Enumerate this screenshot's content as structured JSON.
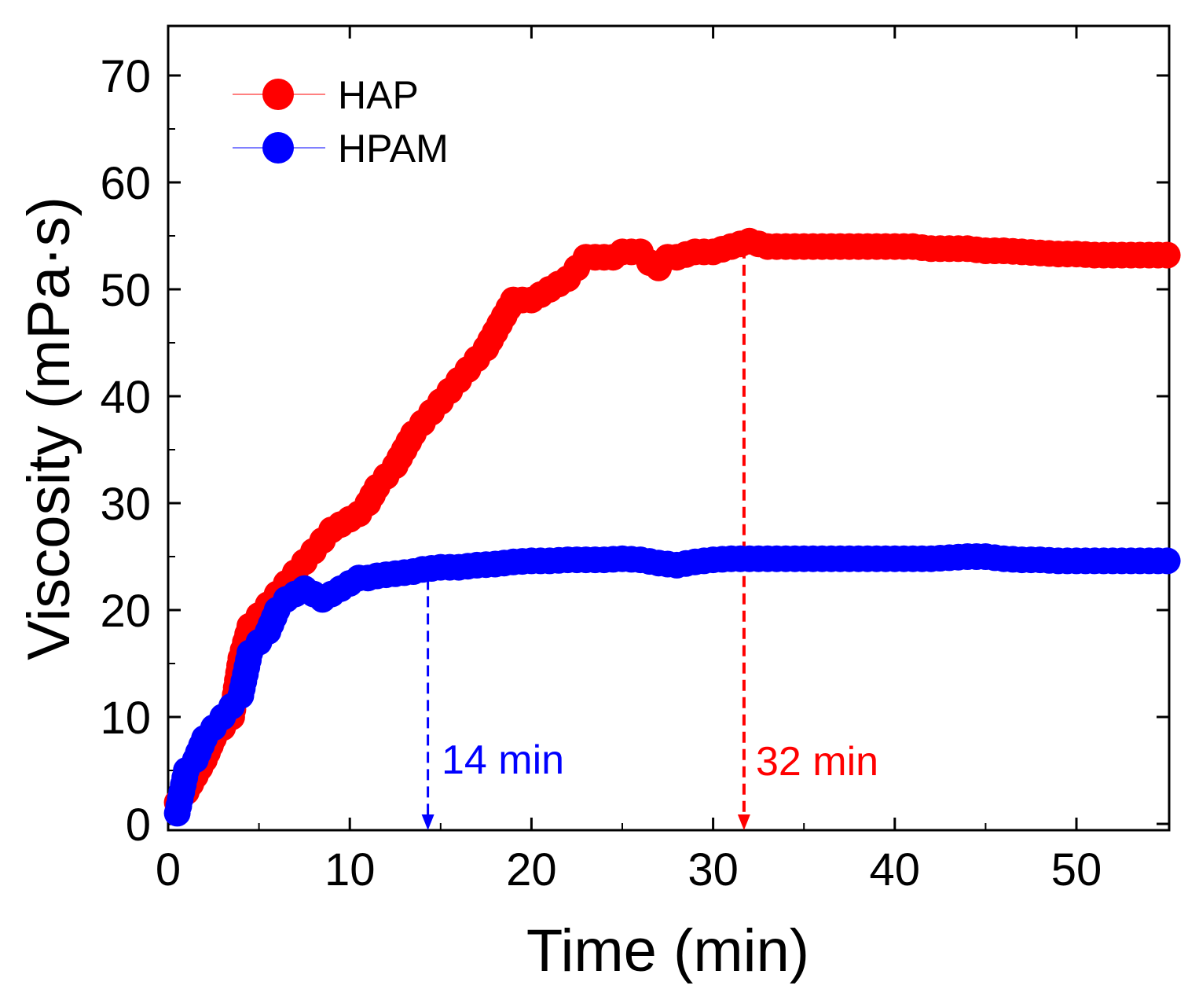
{
  "chart_data": {
    "type": "scatter",
    "title": "",
    "xlabel": "Time (min)",
    "ylabel": "Viscosity (mPa·s)",
    "xlim": [
      0,
      55
    ],
    "ylim": [
      0,
      75
    ],
    "xticks": [
      0,
      10,
      20,
      30,
      40,
      50
    ],
    "yticks": [
      0,
      10,
      20,
      30,
      40,
      50,
      60,
      70
    ],
    "legend_position": "top-left",
    "series": [
      {
        "name": "HAP",
        "color": "#ff0000",
        "x": [
          0.5,
          1,
          1.5,
          2,
          2.5,
          3,
          3.5,
          4,
          4.5,
          5,
          5.5,
          6,
          6.5,
          7,
          7.5,
          8,
          8.5,
          9,
          9.5,
          10,
          10.5,
          11,
          11.5,
          12,
          12.5,
          13,
          13.5,
          14,
          14.5,
          15,
          15.5,
          16,
          16.5,
          17,
          17.5,
          18,
          18.5,
          19,
          19.5,
          20,
          20.5,
          21,
          21.5,
          22,
          22.5,
          23,
          23.5,
          24,
          24.5,
          25,
          25.5,
          26,
          26.5,
          27,
          27.5,
          28,
          29,
          30,
          31,
          32,
          33,
          34,
          35,
          36,
          37,
          38,
          39,
          40,
          41,
          42,
          43,
          44,
          45,
          46,
          47,
          48,
          49,
          50,
          51,
          52,
          53,
          54,
          55
        ],
        "values": [
          2,
          3,
          4.5,
          6,
          8,
          9,
          10,
          15.5,
          18.5,
          19.5,
          20.5,
          21.5,
          22.5,
          23.5,
          24.5,
          25.5,
          26.5,
          27.5,
          28,
          28.5,
          29,
          30,
          31.5,
          32.5,
          33.5,
          35,
          36.5,
          37.5,
          38.5,
          39.5,
          40.5,
          41.5,
          42.5,
          43.5,
          44.5,
          46,
          47.5,
          49,
          49,
          49,
          49.5,
          50,
          50.5,
          51,
          52,
          53,
          53,
          53,
          53,
          53.5,
          53.5,
          53.5,
          52.5,
          52,
          53,
          53,
          53.5,
          53.5,
          54,
          54.5,
          54,
          54,
          54,
          54,
          54,
          54,
          54,
          54,
          54,
          53.8,
          53.8,
          53.8,
          53.6,
          53.6,
          53.5,
          53.4,
          53.3,
          53.3,
          53.2,
          53.2,
          53.2,
          53.2,
          53.2
        ]
      },
      {
        "name": "HPAM",
        "color": "#0000ff",
        "x": [
          0.5,
          1,
          1.5,
          2,
          2.5,
          3,
          3.5,
          4,
          4.5,
          5,
          5.5,
          6,
          6.5,
          7,
          7.5,
          8,
          8.5,
          9,
          9.5,
          10,
          10.5,
          11,
          11.5,
          12,
          12.5,
          13,
          13.5,
          14,
          15,
          16,
          17,
          18,
          19,
          20,
          21,
          22,
          23,
          24,
          25,
          26,
          27,
          28,
          29,
          30,
          31,
          32,
          33,
          34,
          35,
          36,
          37,
          38,
          39,
          40,
          41,
          42,
          43,
          44,
          45,
          46,
          47,
          48,
          49,
          50,
          51,
          52,
          53,
          54,
          55
        ],
        "values": [
          1,
          5,
          6,
          8,
          9,
          10,
          11,
          12,
          16,
          17,
          18,
          20,
          21,
          21.5,
          22,
          21.5,
          21,
          21.5,
          22,
          22.5,
          23,
          23,
          23.2,
          23.3,
          23.4,
          23.5,
          23.6,
          23.8,
          24,
          24,
          24.2,
          24.3,
          24.5,
          24.6,
          24.6,
          24.7,
          24.7,
          24.7,
          24.8,
          24.7,
          24.4,
          24.2,
          24.5,
          24.7,
          24.8,
          24.8,
          24.8,
          24.8,
          24.8,
          24.8,
          24.8,
          24.8,
          24.8,
          24.8,
          24.8,
          24.8,
          24.9,
          25,
          25,
          24.8,
          24.7,
          24.7,
          24.6,
          24.6,
          24.6,
          24.6,
          24.6,
          24.6,
          24.6
        ]
      }
    ],
    "annotations": [
      {
        "text": "14 min",
        "x": 14.3,
        "y_from": 23.5,
        "color": "#0000ff"
      },
      {
        "text": "32 min",
        "x": 31.7,
        "y_from": 54.5,
        "color": "#ff0000"
      }
    ]
  }
}
